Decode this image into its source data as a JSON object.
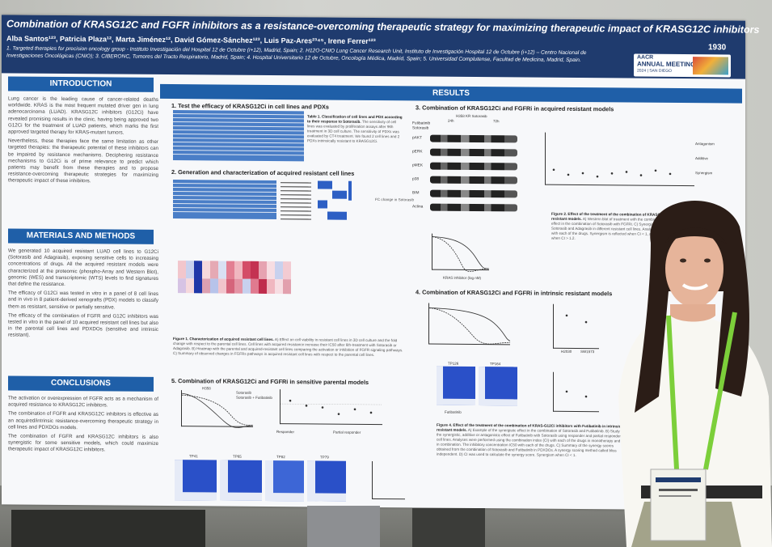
{
  "poster": {
    "title": "Combination of KRASG12C and FGFR inhibitors as a resistance-overcoming therapeutic strategy for maximizing therapeutic impact of KRASG12C inhibitors",
    "board_number": "1930",
    "authors": "Alba Santos¹²³, Patricia Plaza¹², Marta Jiménez¹², David Gómez-Sánchez¹²³, Luis Paz-Ares²³⁴⁵, Irene Ferrer¹²³",
    "affiliations": "1. Targeted therapies for precision oncology group - Instituto Investigación del Hospital 12 de Octubre (i+12), Madrid, Spain; 2. H12O-CNIO Lung Cancer Research Unit, Instituto de Investigación Hospital 12 de Octubre (i+12) – Centro Nacional de Investigaciones Oncológicas (CNIO); 3. CIBERONC, Tumores del Tracto Respiratorio, Madrid, Spain; 4. Hospital Universitario 12 de Octubre, Oncología Médica, Madrid, Spain; 5. Universidad Complutense, Facultad de Medicina, Madrid, Spain.",
    "meeting": {
      "line1": "AACR",
      "line2": "ANNUAL MEETING",
      "line3": "2024 | SAN DIEGO"
    },
    "sections": {
      "introduction": "INTRODUCTION",
      "materials": "MATERIALS AND METHODS",
      "conclusions": "CONCLUSIONS",
      "results": "RESULTS"
    },
    "intro_text": [
      "Lung cancer is the leading cause of cancer-related deaths worldwide. KRAS is the most frequent mutated driver gen in lung adenocarcinoma (LUAD). KRASG12C inhibitors (G12Ci) have revealed promising results in the clinic, having being approved two G12Ci for the treatment of LUAD patients, which marks the first approved targeted therapy for KRAS-mutant tumors.",
      "Nevertheless, these therapies face the same limitation as other targeted therapies: the therapeutic potential of these inhibitors can be impaired by resistance mechanisms. Deciphering resistance mechanisms to G12Ci is of prime relevance to predict which patients may benefit from these therapies and to propose resistance-overcoming therapeutic strategies for maximizing therapeutic impact of these inhibitors."
    ],
    "methods_text": [
      "We generated 10 acquired resistant LUAD cell lines to G12Ci (Sotorasib and Adagrasib), exposing sensitive cells to increasing concentrations of drugs. All the acquired resistant models were characterized at the proteomic (phospho-Array and Western Blot), genomic (WES) and transcriptomic (WTS) levels to find signatures that define the resistance.",
      "The efficacy of G12Ci was tested in vitro in a panel of 8 cell lines and in vivo in 8 patient-derived xenografts (PDX) models to classify them as resistant, sensitive or partially sensitive.",
      "The efficacy of the combination of FGFR and G12C inhibitors was tested in vitro in the panel of 10 acquired resistant cell lines but also in the parental cell lines and PDXDOs (sensitive and intrinsic resistant)."
    ],
    "conclusions_text": [
      "The activation or overexpression of FGFR acts as a mechanism of acquired resistance to KRASG12C inhibitors.",
      "The combination of FGFR and KRASG12C inhibitors is effective as an acquired/intrinsic resistance-overcoming therapeutic strategy in cell lines and PDXDOs models.",
      "The combination of FGFR and KRASG12C inhibitors is also synergistic for some sensitive models, which could maximize therapeutic impact of KRASG12C inhibitors."
    ],
    "results": {
      "r1": "1. Test the efficacy of KRASG12Ci in cell lines and PDXs",
      "r1_caption_bold": "Table 1. Classification of cell lines and PDX according to their response to Sotorasib.",
      "r1_caption": "The sensitivity of cell lines was evaluated by proliferation assays after 96h treatment in 3D cell culture. The sensitivity of PDXs was evaluated by CT4 treatment. We found 2 cell lines and 2 PDXs intrinsically resistant to KRASG12Ci.",
      "r2": "2. Generation and characterization of acquired resistant cell lines",
      "r2_caption_bold": "Figure 1. Characterization of acquired resistant cell lines.",
      "r2_caption": "A) Effect on cell viability in resistant cell lines in 3D cell culture and the fold change with respect to the parental cell lines. Cell lines with acquired resistance increase their IC50 after 6th-treatment with Sotorasib or Adagrasib. B) Heatmap with the parental and acquired-resistant cell lines comparing the activation or inhibition of FGFR signaling pathways. C) Summary of observed changes in FGFRs pathways in acquired resistant cell lines with respect to the parental cell lines.",
      "r2_legend": "FC change in Sotorasib",
      "r3": "3. Combination of KRASG12Ci and FGFRi in acquired resistant models",
      "r3_caption_bold": "Figure 2. Effect of the treatment of the combination of KRASG12Ci inhibitors with FGFRi in acquired-resistant models.",
      "r3_caption": "A) Western blot of treatment with the combination of Sotorasib and Futibatinib. B) Synergistic effect in the combination of Sotorasib with FGFRi. C) Synergistic additive or antagonistic effect of Futibatinib with Sotorasib and Adagrasib in different resistant cell lines. Analyses were performed using the combination index (CI) with each of the drugs. Synergism is reflected when CI < 1, additive when it is between 0.8 - 1.2 and antagonism when CI > 1.2.",
      "r3_blot_title": "H358 KR Sotorasib",
      "r3_blot_times": [
        "24h",
        "72h"
      ],
      "r3_blot_rows": [
        "pAKT",
        "pERK",
        "pMEK",
        "p38",
        "BIM",
        "Actina"
      ],
      "r3_blot_treatments": [
        "Futibatinib",
        "Sotorasib"
      ],
      "r3_ci_labels": [
        "Antagonism",
        "Additive",
        "Synergism"
      ],
      "r3_xlabel": "KRAS inhibitor (log nM)",
      "r4": "4. Combination of KRASG12Ci and FGFRi in intrinsic resistant models",
      "r4_caption_bold": "Figure 4. Effect of the treatment of the combination of KRAS-G12Ci inhibitors with Futibatinib in intrinsic resistant models.",
      "r4_caption": "A) Example of the synergistic effect in the combination of Sotorasib and Futibatinib. B) Study of the synergistic, additive or antagonistic effect of Futibatinib with Sotorasib using responder and partial responder cell lines. Analyses were performed using the combination index (CI) with each of the drugs in monotherapy and in combination. The inhibitory concentration IC50 with each of the drugs. C) Summary of the synergy scores obtained from the combination of Sotorasib and Futibatinib in PDXDOs. A synergy scoring method called bliss independent. D) CI was used to calculate the synergy score. Synergism when CI < 1.",
      "r4_models": [
        "TP126",
        "TP164"
      ],
      "r4_cells": [
        "H2030",
        "SW1573"
      ],
      "r5": "5. Combination of KRASG12Ci and FGFRi in sensitive parental models",
      "r5_cell": "H358",
      "r5_legend": [
        "Sotorasib",
        "Sotorasib + Futibatinib"
      ],
      "r5_groups": [
        "Responder",
        "Partial responder"
      ],
      "r5_models": [
        "TP41",
        "TP65",
        "TP82",
        "TP79"
      ],
      "r5_xaxis": [
        "H23",
        "H358",
        "H1373",
        "H2030",
        "SW1573",
        "H2122"
      ],
      "r5_treatment": "Futibatinib"
    }
  },
  "colors": {
    "header": "#1f3b6e",
    "section": "#1f5fa8",
    "lanyard": "#7ccf3a"
  }
}
